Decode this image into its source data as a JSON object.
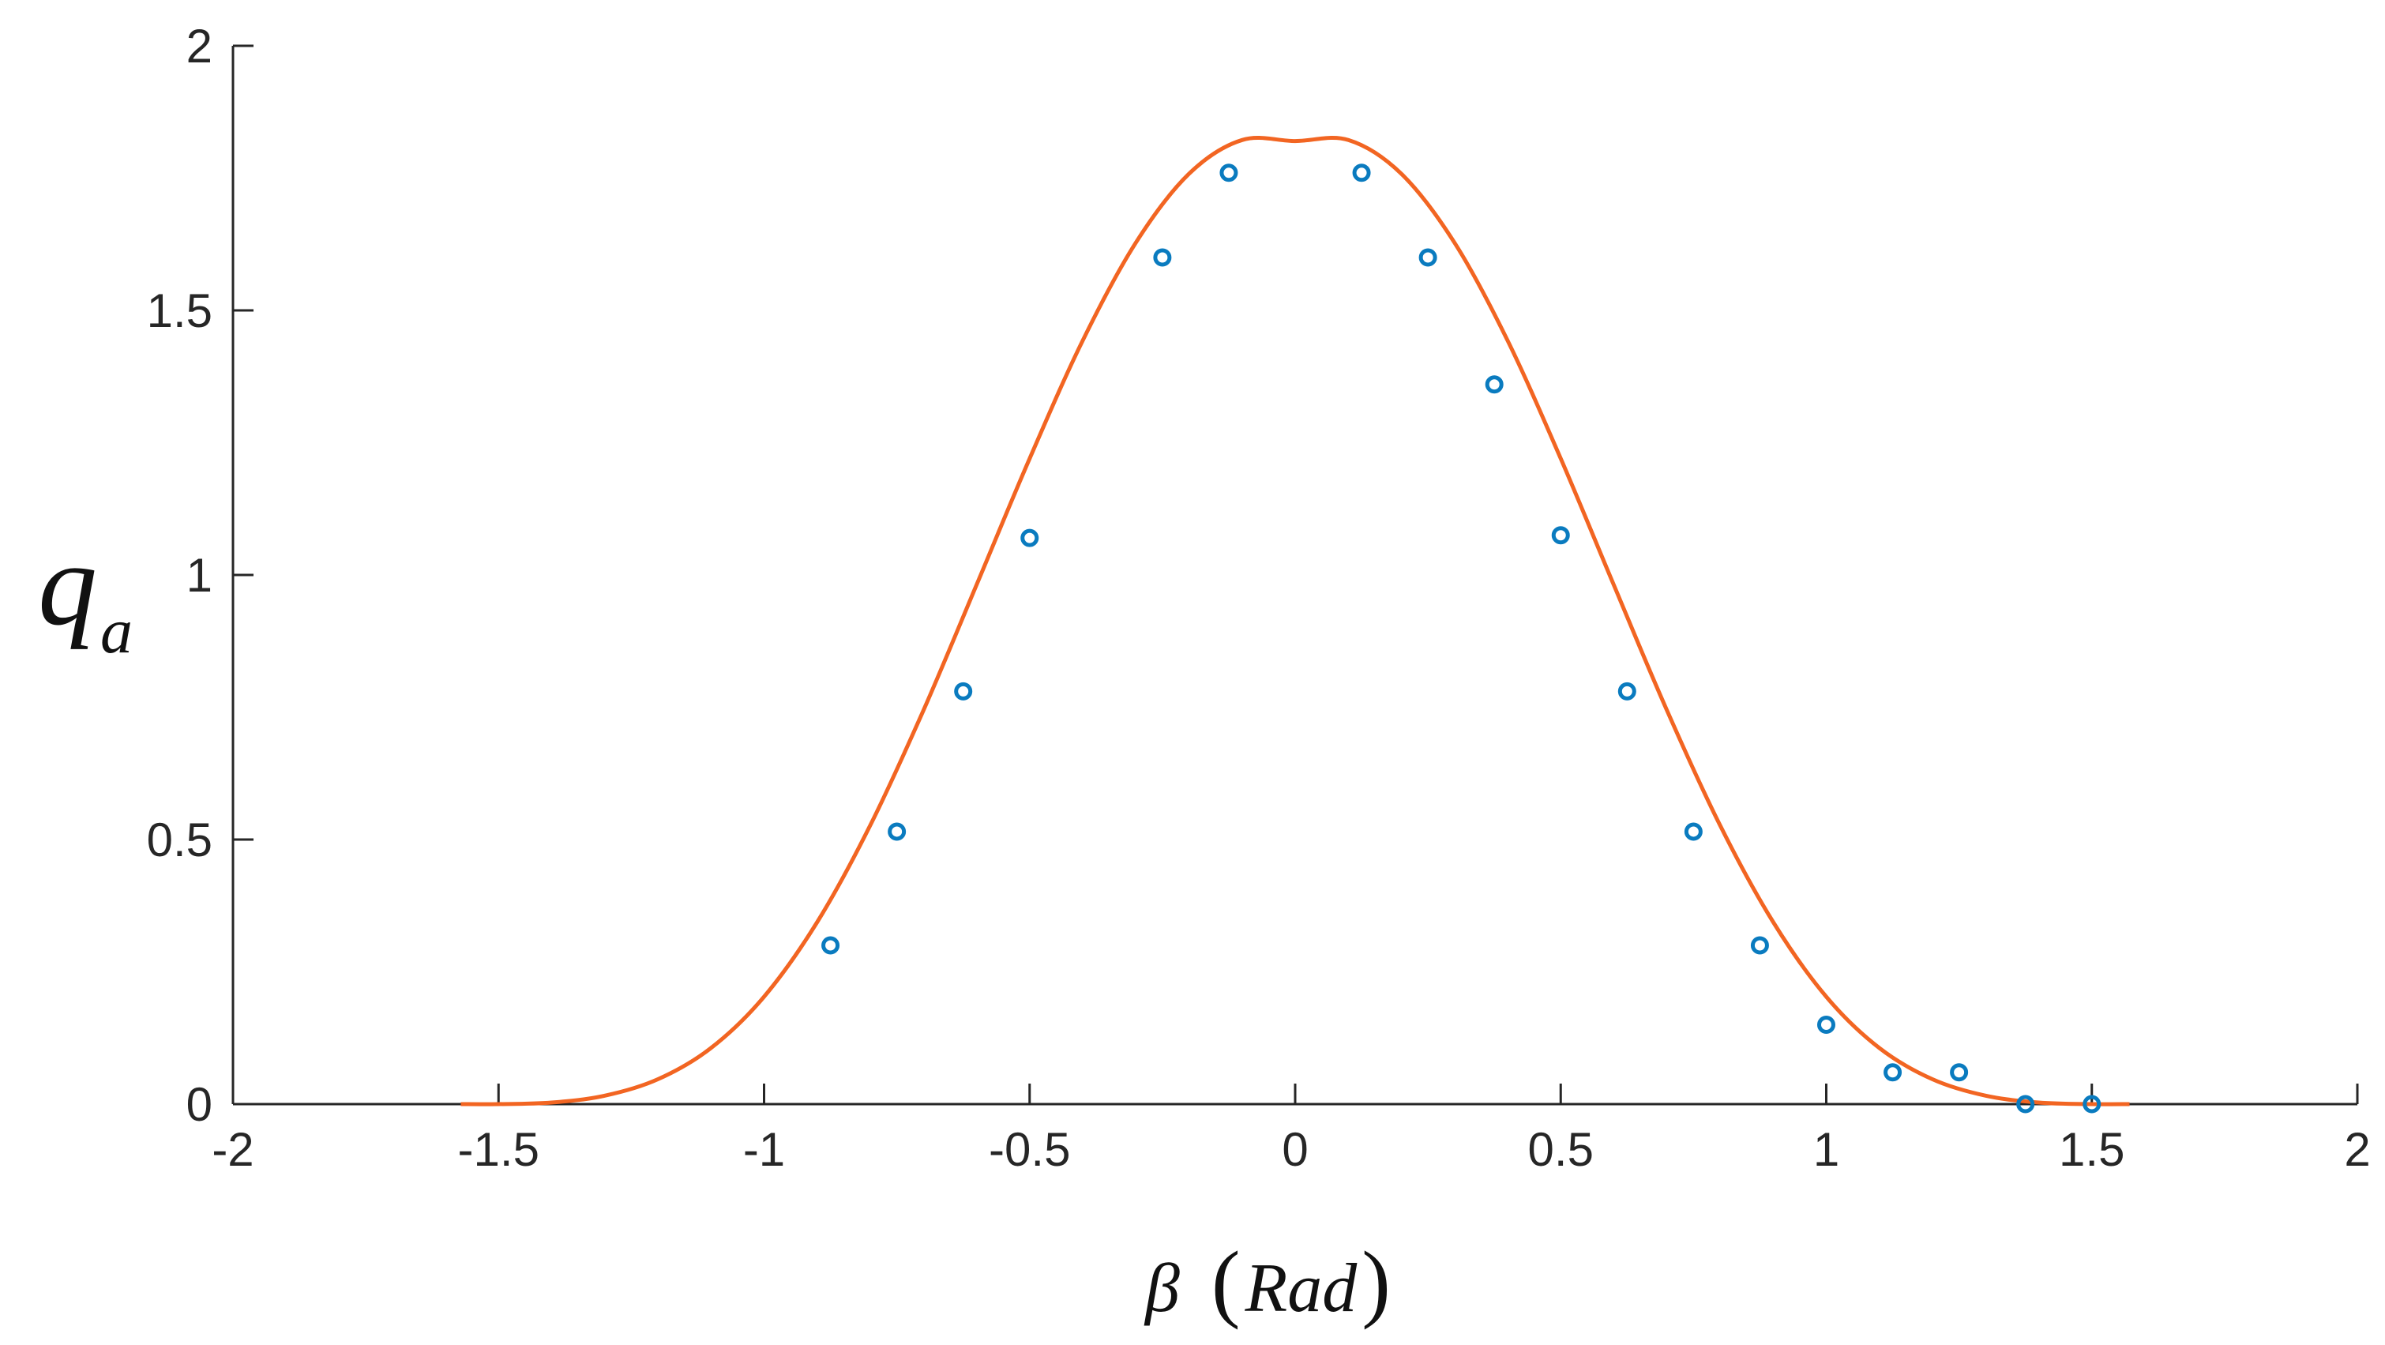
{
  "chart_data": {
    "type": "scatter",
    "xlabel_symbol": "β",
    "xlabel_unit": "Rad",
    "ylabel_main": "q",
    "ylabel_sub": "a",
    "xlim": [
      -2,
      2
    ],
    "ylim": [
      0,
      2
    ],
    "xticks": [
      -2,
      -1.5,
      -1,
      -0.5,
      0,
      0.5,
      1,
      1.5,
      2
    ],
    "yticks": [
      0,
      0.5,
      1,
      1.5,
      2
    ],
    "xtick_labels": [
      "-2",
      "-1.5",
      "-1",
      "-0.5",
      "0",
      "0.5",
      "1",
      "1.5",
      "2"
    ],
    "ytick_labels": [
      "0",
      "0.5",
      "1",
      "1.5",
      "2"
    ],
    "grid": false,
    "colors": {
      "curve": "#f26522",
      "points": "#0a7bbf",
      "axis": "#262626"
    },
    "series": [
      {
        "kind": "line",
        "x": [
          -1.571,
          -1.5,
          -1.4,
          -1.3,
          -1.2,
          -1.1,
          -1.0,
          -0.9,
          -0.8,
          -0.7,
          -0.6,
          -0.5,
          -0.4,
          -0.3,
          -0.2,
          -0.1,
          0.0,
          0.1,
          0.2,
          0.3,
          0.4,
          0.5,
          0.6,
          0.7,
          0.8,
          0.9,
          1.0,
          1.1,
          1.2,
          1.3,
          1.4,
          1.5,
          1.571
        ],
        "y": [
          0.0,
          0.0,
          0.003,
          0.016,
          0.047,
          0.106,
          0.203,
          0.344,
          0.527,
          0.744,
          0.981,
          1.22,
          1.443,
          1.628,
          1.758,
          1.822,
          1.82,
          1.822,
          1.758,
          1.628,
          1.443,
          1.22,
          0.981,
          0.744,
          0.527,
          0.344,
          0.203,
          0.106,
          0.047,
          0.016,
          0.003,
          0.0,
          0.0
        ]
      },
      {
        "kind": "points",
        "x": [
          -0.875,
          -0.75,
          -0.625,
          -0.5,
          -0.25,
          -0.125,
          0.125,
          0.25,
          0.375,
          0.5,
          0.625,
          0.75,
          0.875,
          1.0,
          1.125,
          1.25,
          1.375,
          1.5
        ],
        "y": [
          0.3,
          0.515,
          0.78,
          1.07,
          1.6,
          1.76,
          1.76,
          1.6,
          1.36,
          1.075,
          0.78,
          0.515,
          0.3,
          0.15,
          0.06,
          0.06,
          0.0,
          0.0
        ]
      }
    ]
  }
}
